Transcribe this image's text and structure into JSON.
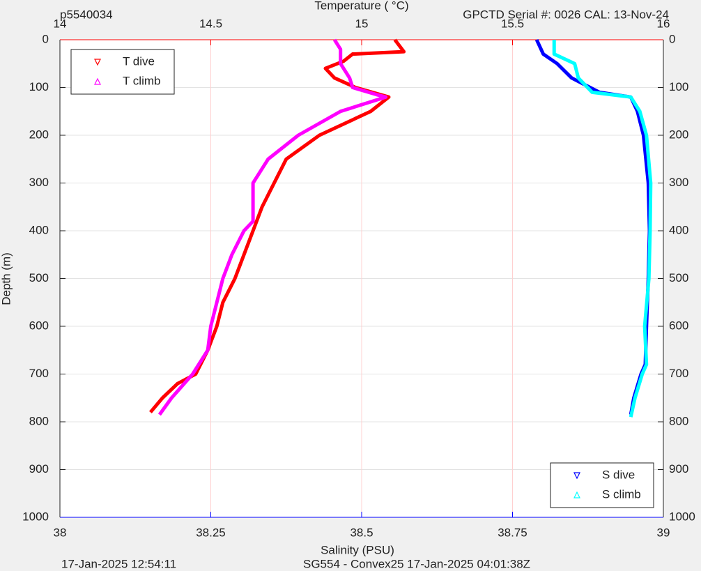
{
  "chart_data": {
    "type": "line",
    "corner_left": "p5540034",
    "corner_right": "GPCTD Serial #: 0026 CAL: 13-Nov-24",
    "xlabel": "Temperature (    °C)",
    "x2label": "Salinity (PSU)",
    "ylabel": "Depth (m)",
    "footer_left": "17-Jan-2025 12:54:11",
    "footer_center": "SG554 - Convex25 17-Jan-2025 04:01:38Z",
    "xlim": [
      14,
      16
    ],
    "xticks": [
      14,
      14.5,
      15,
      15.5,
      16
    ],
    "x_color": "#ff0000",
    "x2lim": [
      38,
      39
    ],
    "x2ticks": [
      38,
      38.25,
      38.5,
      38.75,
      39
    ],
    "x2_color": "#0000ff",
    "ylim": [
      0,
      1000
    ],
    "yticks": [
      0,
      100,
      200,
      300,
      400,
      500,
      600,
      700,
      800,
      900,
      1000
    ],
    "y_reversed": true,
    "grid": true,
    "series": [
      {
        "name": "T dive",
        "color": "#ff0000",
        "marker": "down",
        "legend": "northwest",
        "depth": [
          0,
          25,
          30,
          45,
          60,
          80,
          100,
          120,
          150,
          200,
          250,
          300,
          350,
          400,
          450,
          500,
          550,
          600,
          650,
          700,
          720,
          750,
          780
        ],
        "values": [
          15.11,
          15.14,
          14.97,
          14.94,
          14.88,
          14.91,
          14.98,
          15.09,
          15.03,
          14.86,
          14.75,
          14.71,
          14.67,
          14.64,
          14.61,
          14.58,
          14.54,
          14.52,
          14.49,
          14.45,
          14.39,
          14.34,
          14.3
        ]
      },
      {
        "name": "T climb",
        "color": "#ff00ff",
        "marker": "up",
        "legend": "northwest",
        "depth": [
          0,
          20,
          50,
          80,
          100,
          115,
          120,
          150,
          200,
          250,
          300,
          350,
          380,
          400,
          450,
          500,
          550,
          600,
          650,
          700,
          750,
          785
        ],
        "values": [
          14.91,
          14.93,
          14.93,
          14.96,
          14.97,
          15.05,
          15.08,
          14.93,
          14.79,
          14.69,
          14.64,
          14.64,
          14.64,
          14.61,
          14.57,
          14.54,
          14.52,
          14.5,
          14.49,
          14.44,
          14.37,
          14.33
        ]
      },
      {
        "name": "S dive",
        "color": "#0000ff",
        "marker": "down",
        "legend": "southeast",
        "axis": "x2",
        "depth": [
          0,
          30,
          50,
          80,
          110,
          120,
          150,
          200,
          300,
          400,
          500,
          600,
          680,
          700,
          750,
          785
        ],
        "values": [
          38.79,
          38.801,
          38.824,
          38.848,
          38.894,
          38.946,
          38.957,
          38.967,
          38.975,
          38.977,
          38.975,
          38.972,
          38.97,
          38.963,
          38.951,
          38.946
        ]
      },
      {
        "name": "S climb",
        "color": "#00ffff",
        "marker": "up",
        "legend": "southeast",
        "axis": "x2",
        "depth": [
          0,
          30,
          50,
          80,
          110,
          120,
          150,
          200,
          300,
          400,
          500,
          600,
          680,
          700,
          750,
          790
        ],
        "values": [
          38.819,
          38.819,
          38.853,
          38.859,
          38.882,
          38.946,
          38.961,
          38.972,
          38.979,
          38.978,
          38.976,
          38.969,
          38.972,
          38.965,
          38.953,
          38.946
        ]
      }
    ]
  }
}
